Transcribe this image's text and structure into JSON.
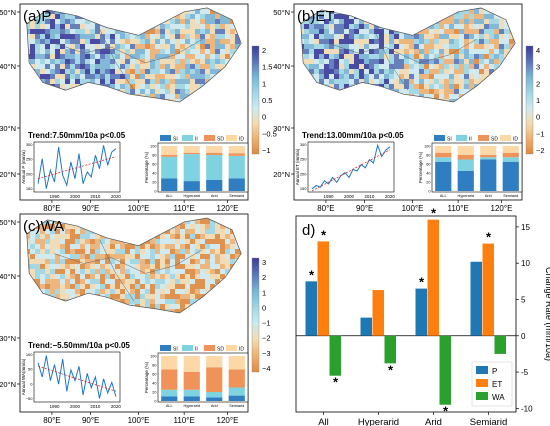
{
  "panels": [
    {
      "label": "(a)P",
      "trend": "Trend:7.50mm/10a p<0.05",
      "lat_ticks": [
        "50°N",
        "40°N",
        "30°N",
        "20°N"
      ],
      "lon_ticks": [
        "80°E",
        "90°E",
        "100°E",
        "110°E",
        "120°E"
      ],
      "colorbar_ticks": [
        "2",
        "1.5",
        "1",
        "0.5",
        "0",
        "−0.5",
        "−1"
      ],
      "colors": {
        "high": "#3b3b9a",
        "mid": "#9fd6e3",
        "low": "#e08a3c"
      },
      "inset_line": {
        "ylabel": "Annual P (mm/a)",
        "xticks": [
          "1990",
          "2000",
          "2010",
          "2020"
        ],
        "yticks": [
          "300",
          "250",
          "200",
          "150"
        ],
        "x": [
          1982,
          1984,
          1986,
          1988,
          1990,
          1992,
          1994,
          1996,
          1998,
          2000,
          2002,
          2004,
          2006,
          2008,
          2010,
          2012,
          2014,
          2016,
          2018,
          2020
        ],
        "y": [
          175,
          250,
          160,
          215,
          180,
          285,
          200,
          170,
          240,
          190,
          265,
          175,
          210,
          195,
          260,
          220,
          290,
          230,
          270,
          280
        ]
      },
      "inset_bar": {
        "ylabel": "Percentage (%)",
        "legend": [
          "SI",
          "II",
          "SD",
          "ID"
        ],
        "categories": [
          "ALL",
          "Hyperarid",
          "Arid",
          "Semiarid"
        ],
        "yticks": [
          "0",
          "20",
          "40",
          "60",
          "80",
          "100"
        ],
        "values": [
          [
            28,
            48,
            4,
            20
          ],
          [
            22,
            60,
            3,
            15
          ],
          [
            25,
            55,
            5,
            15
          ],
          [
            28,
            50,
            6,
            16
          ]
        ]
      }
    },
    {
      "label": "(b)ET",
      "trend": "Trend:13.00mm/10a p<0.05",
      "lat_ticks": [
        "50°N",
        "40°N",
        "30°N",
        "20°N"
      ],
      "lon_ticks": [
        "80°E",
        "90°E",
        "100°E",
        "110°E",
        "120°E"
      ],
      "colorbar_ticks": [
        "4",
        "3",
        "2",
        "1",
        "0",
        "−1",
        "−2"
      ],
      "colors": {
        "high": "#3b3b9a",
        "mid": "#9fd6e3",
        "low": "#e08a3c"
      },
      "inset_line": {
        "ylabel": "Annual ET (mm/a)",
        "xticks": [
          "1990",
          "2000",
          "2010",
          "2020"
        ],
        "yticks": [
          "300",
          "250",
          "200",
          "150"
        ],
        "x": [
          1982,
          1984,
          1986,
          1988,
          1990,
          1992,
          1994,
          1996,
          1998,
          2000,
          2002,
          2004,
          2006,
          2008,
          2010,
          2012,
          2014,
          2016,
          2018,
          2020
        ],
        "y": [
          150,
          160,
          155,
          175,
          165,
          185,
          170,
          190,
          200,
          185,
          210,
          205,
          225,
          215,
          240,
          230,
          285,
          250,
          270,
          280
        ]
      },
      "inset_bar": {
        "ylabel": "Percentage (%)",
        "legend": [
          "SI",
          "II",
          "SD",
          "ID"
        ],
        "categories": [
          "ALL",
          "Hyperarid",
          "Arid",
          "Semiarid"
        ],
        "yticks": [
          "0",
          "20",
          "40",
          "60",
          "80",
          "100"
        ],
        "values": [
          [
            65,
            10,
            10,
            15
          ],
          [
            45,
            25,
            10,
            20
          ],
          [
            70,
            5,
            5,
            20
          ],
          [
            65,
            10,
            10,
            15
          ]
        ]
      }
    },
    {
      "label": "(c)WA",
      "trend": "Trend:−5.50mm/10a p<0.05",
      "lat_ticks": [
        "50°N",
        "40°N",
        "30°N",
        "20°N"
      ],
      "lon_ticks": [
        "80°E",
        "90°E",
        "100°E",
        "110°E",
        "120°E"
      ],
      "colorbar_ticks": [
        "3",
        "2",
        "1",
        "0",
        "−1",
        "−2",
        "−3",
        "−4"
      ],
      "colors": {
        "high": "#3b3b9a",
        "mid": "#9fd6e3",
        "low": "#e08a3c"
      },
      "inset_line": {
        "ylabel": "Annual WA(mm/a)",
        "xticks": [
          "1990",
          "2000",
          "2010",
          "2020"
        ],
        "yticks": [
          "100",
          "50",
          "0",
          "−50"
        ],
        "x": [
          1982,
          1984,
          1986,
          1988,
          1990,
          1992,
          1994,
          1996,
          1998,
          2000,
          2002,
          2004,
          2006,
          2008,
          2010,
          2012,
          2014,
          2016,
          2018,
          2020
        ],
        "y": [
          60,
          20,
          80,
          10,
          55,
          0,
          70,
          -20,
          40,
          10,
          50,
          -30,
          30,
          -10,
          20,
          -40,
          15,
          -25,
          5,
          -35
        ]
      },
      "inset_bar": {
        "ylabel": "Percentage (%)",
        "legend": [
          "SI",
          "II",
          "SD",
          "ID"
        ],
        "categories": [
          "ALL",
          "Hyperarid",
          "Arid",
          "Semiarid"
        ],
        "yticks": [
          "0",
          "20",
          "40",
          "60",
          "80",
          "100"
        ],
        "values": [
          [
            10,
            15,
            45,
            30
          ],
          [
            10,
            15,
            40,
            35
          ],
          [
            8,
            12,
            55,
            25
          ],
          [
            12,
            18,
            40,
            30
          ]
        ]
      }
    }
  ],
  "bar_chart": {
    "label": "d)",
    "ylabel": "Change Rate (mm/10a)",
    "categories": [
      "All",
      "Hyperarid",
      "Arid",
      "Semiarid"
    ],
    "yticks": [
      -10,
      -5,
      0,
      5,
      10,
      15
    ],
    "ylim": [
      -10.5,
      16.5
    ],
    "legend_position": "bottom-right",
    "series": [
      {
        "name": "P",
        "color": "#1f77b4",
        "values": [
          7.5,
          2.5,
          6.5,
          10.2
        ]
      },
      {
        "name": "ET",
        "color": "#ff7f0e",
        "values": [
          13.0,
          6.3,
          16.0,
          12.7
        ]
      },
      {
        "name": "WA",
        "color": "#2ca02c",
        "values": [
          -5.5,
          -3.8,
          -9.5,
          -2.5
        ]
      }
    ],
    "significance_marker": "*",
    "significant": [
      [
        true,
        true,
        true
      ],
      [
        false,
        false,
        true
      ],
      [
        true,
        true,
        true
      ],
      [
        false,
        true,
        false
      ]
    ]
  },
  "chart_data": [
    {
      "type": "bar",
      "title": "",
      "categories": [
        "All",
        "Hyperarid",
        "Arid",
        "Semiarid"
      ],
      "ylabel": "Change Rate (mm/10a)",
      "ylim": [
        -10.5,
        16.5
      ],
      "series": [
        {
          "name": "P",
          "values": [
            7.5,
            2.5,
            6.5,
            10.2
          ]
        },
        {
          "name": "ET",
          "values": [
            13.0,
            6.3,
            16.0,
            12.7
          ]
        },
        {
          "name": "WA",
          "values": [
            -5.5,
            -3.8,
            -9.5,
            -2.5
          ]
        }
      ]
    }
  ]
}
